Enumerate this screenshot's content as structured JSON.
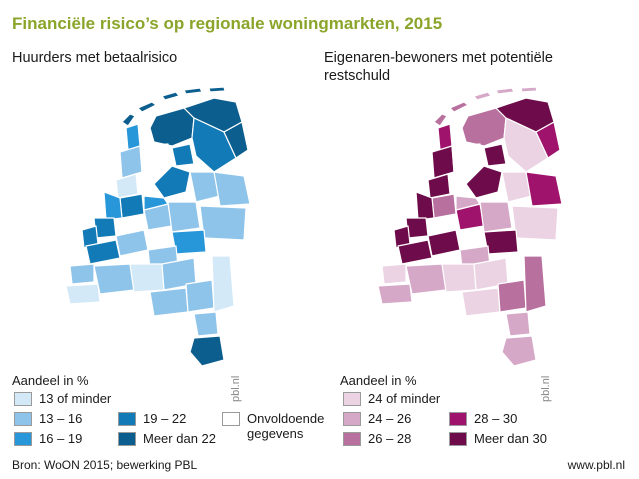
{
  "title": "Financiële risico’s op regionale woningmarkten, 2015",
  "left_panel": {
    "subtitle": "Huurders met betaalrisico",
    "legend_title": "Aandeel in %",
    "legend": [
      {
        "label": "13 of minder",
        "color": "#d3e9f8"
      },
      {
        "label": "13 – 16",
        "color": "#8fc4ea"
      },
      {
        "label": "16 – 19",
        "color": "#2797da"
      },
      {
        "label": "19 – 22",
        "color": "#127ab7"
      },
      {
        "label": "Meer dan 22",
        "color": "#0b5e8e"
      },
      {
        "label": "Onvoldoende gegevens",
        "color": "#ffffff"
      }
    ]
  },
  "right_panel": {
    "subtitle": "Eigenaren-bewoners met potentiële restschuld",
    "legend_title": "Aandeel in %",
    "legend": [
      {
        "label": "24 of minder",
        "color": "#ebd3e3"
      },
      {
        "label": "24 – 26",
        "color": "#d6a8c8"
      },
      {
        "label": "26 – 28",
        "color": "#b8709f"
      },
      {
        "label": "28 – 30",
        "color": "#a0136d"
      },
      {
        "label": "Meer dan 30",
        "color": "#6e0b4a"
      }
    ]
  },
  "watermark": "pbl.nl",
  "source": "Bron: WoON 2015; bewerking PBL",
  "url": "www.pbl.nl",
  "colors": {
    "title": "#8aa52a",
    "sea": "#ffffff",
    "border": "#ffffff"
  }
}
